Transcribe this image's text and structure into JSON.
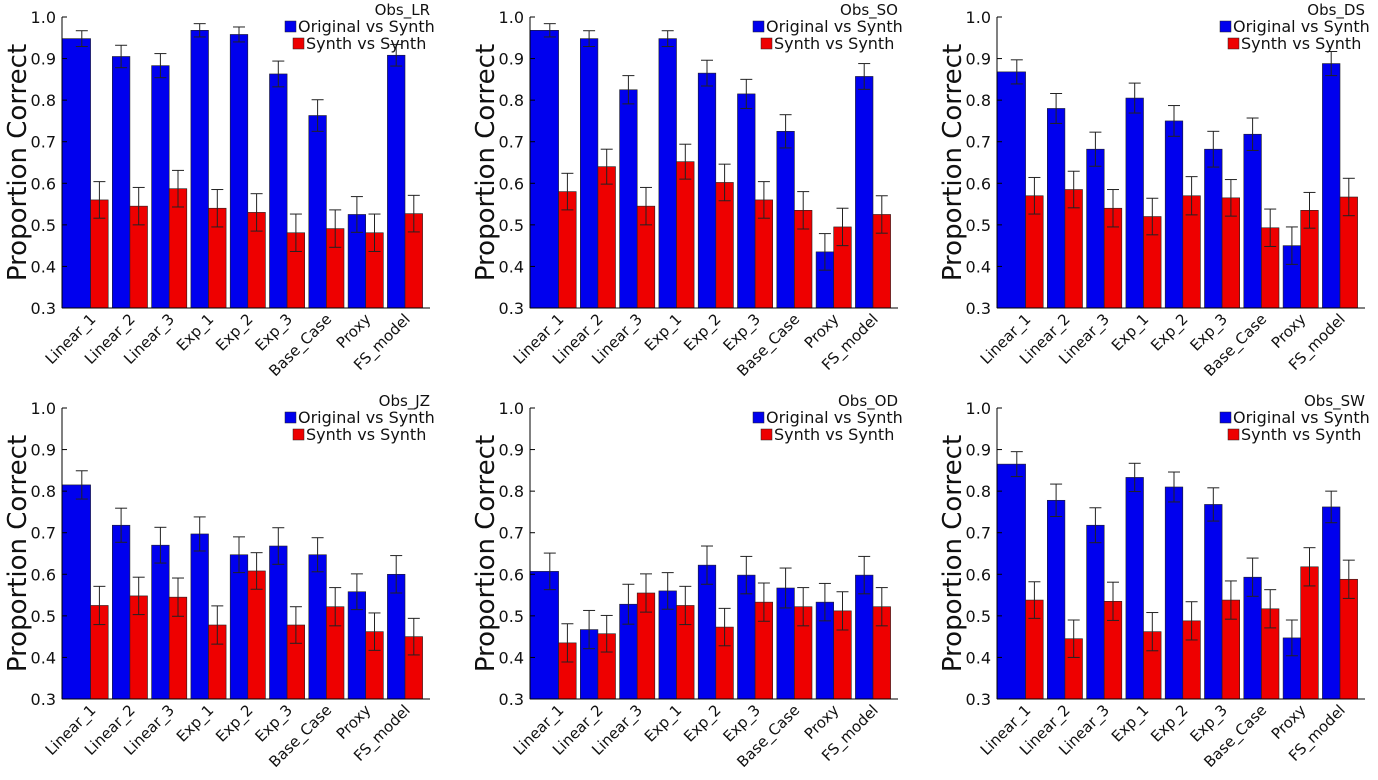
{
  "chart_data": {
    "type": "bar",
    "layout": "2x3 grid",
    "ylabel": "Proportion Correct",
    "ylim": [
      0.3,
      1.0
    ],
    "yticks": [
      "0.3",
      "0.4",
      "0.5",
      "0.6",
      "0.7",
      "0.8",
      "0.9",
      "1.0"
    ],
    "grid": false,
    "legend_placement": "top-right",
    "categories": [
      "Linear_1",
      "Linear_2",
      "Linear_3",
      "Exp_1",
      "Exp_2",
      "Exp_3",
      "Base_Case",
      "Proxy",
      "FS_model"
    ],
    "series_names": [
      "Original vs Synth",
      "Synth vs Synth"
    ],
    "colors": {
      "Original vs Synth": "#0000ee",
      "Synth vs Synth": "#ee0000"
    },
    "panels": [
      {
        "title": "Obs_LR",
        "series": [
          {
            "name": "Original vs Synth",
            "values": [
              0.948,
              0.905,
              0.883,
              0.968,
              0.958,
              0.863,
              0.763,
              0.525,
              0.908
            ],
            "errors": [
              0.019,
              0.027,
              0.029,
              0.016,
              0.018,
              0.031,
              0.038,
              0.043,
              0.026
            ]
          },
          {
            "name": "Synth vs Synth",
            "values": [
              0.56,
              0.545,
              0.587,
              0.54,
              0.53,
              0.481,
              0.491,
              0.481,
              0.527
            ],
            "errors": [
              0.044,
              0.045,
              0.044,
              0.045,
              0.045,
              0.045,
              0.045,
              0.045,
              0.044
            ]
          }
        ]
      },
      {
        "title": "Obs_SO",
        "series": [
          {
            "name": "Original vs Synth",
            "values": [
              0.968,
              0.948,
              0.825,
              0.948,
              0.865,
              0.815,
              0.725,
              0.435,
              0.857
            ],
            "errors": [
              0.016,
              0.019,
              0.034,
              0.019,
              0.031,
              0.035,
              0.04,
              0.044,
              0.031
            ]
          },
          {
            "name": "Synth vs Synth",
            "values": [
              0.58,
              0.64,
              0.545,
              0.652,
              0.602,
              0.56,
              0.535,
              0.495,
              0.525
            ],
            "errors": [
              0.044,
              0.042,
              0.045,
              0.042,
              0.044,
              0.044,
              0.045,
              0.045,
              0.045
            ]
          }
        ]
      },
      {
        "title": "Obs_DS",
        "series": [
          {
            "name": "Original vs Synth",
            "values": [
              0.868,
              0.78,
              0.682,
              0.805,
              0.75,
              0.682,
              0.718,
              0.45,
              0.888
            ],
            "errors": [
              0.029,
              0.036,
              0.041,
              0.036,
              0.037,
              0.043,
              0.039,
              0.045,
              0.029
            ]
          },
          {
            "name": "Synth vs Synth",
            "values": [
              0.57,
              0.585,
              0.54,
              0.52,
              0.57,
              0.565,
              0.493,
              0.535,
              0.567
            ],
            "errors": [
              0.044,
              0.044,
              0.045,
              0.044,
              0.046,
              0.044,
              0.045,
              0.043,
              0.045
            ]
          }
        ]
      },
      {
        "title": "Obs_JZ",
        "series": [
          {
            "name": "Original vs Synth",
            "values": [
              0.815,
              0.718,
              0.67,
              0.697,
              0.647,
              0.668,
              0.647,
              0.558,
              0.6
            ],
            "errors": [
              0.034,
              0.041,
              0.043,
              0.041,
              0.043,
              0.044,
              0.041,
              0.043,
              0.045
            ]
          },
          {
            "name": "Synth vs Synth",
            "values": [
              0.525,
              0.548,
              0.545,
              0.478,
              0.608,
              0.478,
              0.522,
              0.462,
              0.45
            ],
            "errors": [
              0.046,
              0.045,
              0.046,
              0.046,
              0.044,
              0.044,
              0.046,
              0.045,
              0.044
            ]
          }
        ]
      },
      {
        "title": "Obs_OD",
        "series": [
          {
            "name": "Original vs Synth",
            "values": [
              0.607,
              0.467,
              0.528,
              0.56,
              0.622,
              0.598,
              0.567,
              0.533,
              0.598
            ],
            "errors": [
              0.044,
              0.046,
              0.048,
              0.044,
              0.046,
              0.045,
              0.048,
              0.045,
              0.045
            ]
          },
          {
            "name": "Synth vs Synth",
            "values": [
              0.435,
              0.457,
              0.555,
              0.525,
              0.473,
              0.533,
              0.522,
              0.512,
              0.522
            ],
            "errors": [
              0.046,
              0.044,
              0.046,
              0.046,
              0.045,
              0.046,
              0.046,
              0.046,
              0.046
            ]
          }
        ]
      },
      {
        "title": "Obs_SW",
        "series": [
          {
            "name": "Original vs Synth",
            "values": [
              0.865,
              0.778,
              0.718,
              0.833,
              0.81,
              0.768,
              0.593,
              0.447,
              0.762
            ],
            "errors": [
              0.03,
              0.039,
              0.042,
              0.034,
              0.036,
              0.04,
              0.046,
              0.043,
              0.038
            ]
          },
          {
            "name": "Synth vs Synth",
            "values": [
              0.538,
              0.445,
              0.535,
              0.462,
              0.488,
              0.538,
              0.517,
              0.618,
              0.588
            ],
            "errors": [
              0.044,
              0.045,
              0.046,
              0.046,
              0.046,
              0.046,
              0.046,
              0.046,
              0.046
            ]
          }
        ]
      }
    ]
  }
}
